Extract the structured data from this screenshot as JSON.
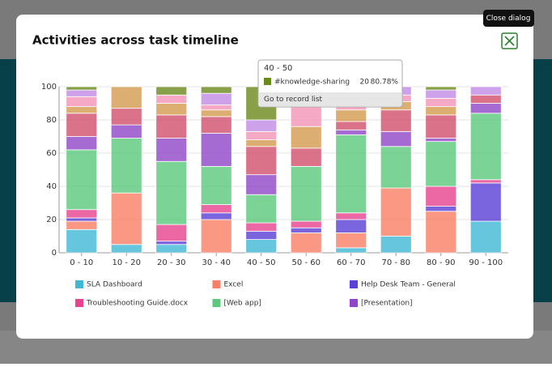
{
  "dialog": {
    "title": "Activities across task timeline",
    "close_tooltip": "Close dialog"
  },
  "chart_data": {
    "type": "bar",
    "stacked": true,
    "categories": [
      "0 - 10",
      "10 - 20",
      "20 - 30",
      "30 - 40",
      "40 - 50",
      "50 - 60",
      "60 - 70",
      "70 - 80",
      "80 - 90",
      "90 - 100"
    ],
    "ylim": [
      0,
      100
    ],
    "yticks": [
      0,
      20,
      40,
      60,
      80,
      100
    ],
    "grid": true,
    "series": [
      {
        "name": "SLA Dashboard",
        "color": "#3fb8d6",
        "values": [
          14,
          5,
          5,
          0,
          8,
          0,
          3,
          10,
          0,
          19
        ]
      },
      {
        "name": "Excel",
        "color": "#fa7f66",
        "values": [
          5,
          31,
          0,
          20,
          0,
          12,
          9,
          29,
          25,
          0
        ]
      },
      {
        "name": "Help Desk Team - General",
        "color": "#5b3fd6",
        "values": [
          2,
          0,
          2,
          4,
          5,
          3,
          8,
          0,
          3,
          23
        ]
      },
      {
        "name": "Troubleshooting Guide.docx",
        "color": "#e8438f",
        "values": [
          5,
          0,
          10,
          5,
          5,
          4,
          4,
          0,
          12,
          2
        ]
      },
      {
        "name": "[Web app]",
        "color": "#5cc97c",
        "values": [
          36,
          33,
          38,
          23,
          17,
          33,
          47,
          25,
          27,
          40
        ]
      },
      {
        "name": "[Presentation]",
        "color": "#9146c9",
        "values": [
          8,
          8,
          14,
          20,
          12,
          0,
          3,
          9,
          2,
          6
        ]
      },
      {
        "color": "#d24f6e",
        "values": [
          14,
          10,
          14,
          10,
          17,
          11,
          5,
          13,
          14,
          5
        ]
      },
      {
        "color": "#d59a4e",
        "values": [
          4,
          13,
          7,
          4,
          4,
          13,
          7,
          5,
          5,
          0
        ]
      },
      {
        "color": "#f394b6",
        "values": [
          6,
          0,
          5,
          3,
          5,
          14,
          5,
          4,
          5,
          0
        ]
      },
      {
        "color": "#c28be6",
        "values": [
          4,
          0,
          0,
          7,
          7,
          10,
          4,
          5,
          5,
          5
        ]
      },
      {
        "name": "#knowledge-sharing",
        "color": "#6b8a1c",
        "legend": false,
        "values": [
          2,
          0,
          5,
          4,
          20,
          0,
          5,
          0,
          2,
          0
        ]
      }
    ]
  },
  "tooltip": {
    "category": "40 - 50",
    "count": 20,
    "percent": "80.78%",
    "action": "Go to record list"
  }
}
